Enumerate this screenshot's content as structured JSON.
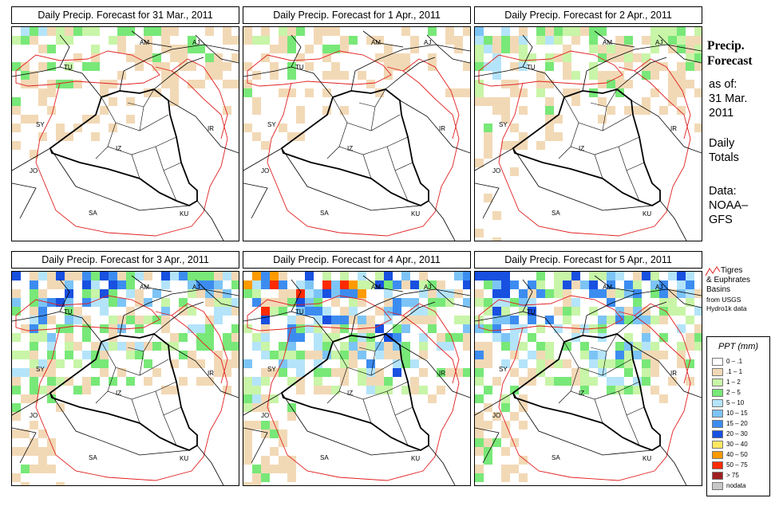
{
  "panels": [
    {
      "title": "Daily Precip. Forecast for  31 Mar., 2011",
      "intensity": 0.35,
      "seed": 3
    },
    {
      "title": "Daily Precip. Forecast for  1 Apr., 2011",
      "intensity": 0.3,
      "seed": 7
    },
    {
      "title": "Daily Precip. Forecast for  2 Apr., 2011",
      "intensity": 0.45,
      "seed": 11
    },
    {
      "title": "Daily Precip. Forecast for  3 Apr., 2011",
      "intensity": 0.75,
      "seed": 17
    },
    {
      "title": "Daily Precip. Forecast for  4 Apr., 2011",
      "intensity": 0.95,
      "seed": 23
    },
    {
      "title": "Daily Precip. Forecast for  5 Apr., 2011",
      "intensity": 0.8,
      "seed": 29
    }
  ],
  "country_labels": [
    "AM",
    "AJ",
    "TU",
    "SY",
    "IR",
    "JO",
    "SA",
    "KU",
    "IZ"
  ],
  "sidebar": {
    "title_line1": "Precip.",
    "title_line2": "Forecast",
    "asof_label": "as of:",
    "asof_date1": "31 Mar.",
    "asof_date2": "2011",
    "totals1": "Daily",
    "totals2": "Totals",
    "data1": "Data:",
    "data2": "NOAA–",
    "data3": "GFS"
  },
  "basin_key": {
    "line1": "Tigres",
    "line2": "& Euphrates",
    "line3": "Basins",
    "line4": "from USGS",
    "line5": "Hydro1k data",
    "line_color": "#e02020"
  },
  "legend": {
    "title": "PPT (mm)",
    "items": [
      {
        "label": "0 – .1",
        "color": "#ffffff"
      },
      {
        "label": ".1 – 1",
        "color": "#f2d9b6"
      },
      {
        "label": "1 – 2",
        "color": "#c8f5a8"
      },
      {
        "label": "2 – 5",
        "color": "#78e878"
      },
      {
        "label": "5 – 10",
        "color": "#b4e4fa"
      },
      {
        "label": "10 – 15",
        "color": "#7cc4f6"
      },
      {
        "label": "15 – 20",
        "color": "#3c8cf0"
      },
      {
        "label": "20 – 30",
        "color": "#1850e0"
      },
      {
        "label": "30 – 40",
        "color": "#ffe860"
      },
      {
        "label": "40 – 50",
        "color": "#ff9a00"
      },
      {
        "label": "50 – 75",
        "color": "#ff2a00"
      },
      {
        "label": "> 75",
        "color": "#a02020"
      },
      {
        "label": "nodata",
        "color": "#c8c8c8"
      }
    ]
  }
}
